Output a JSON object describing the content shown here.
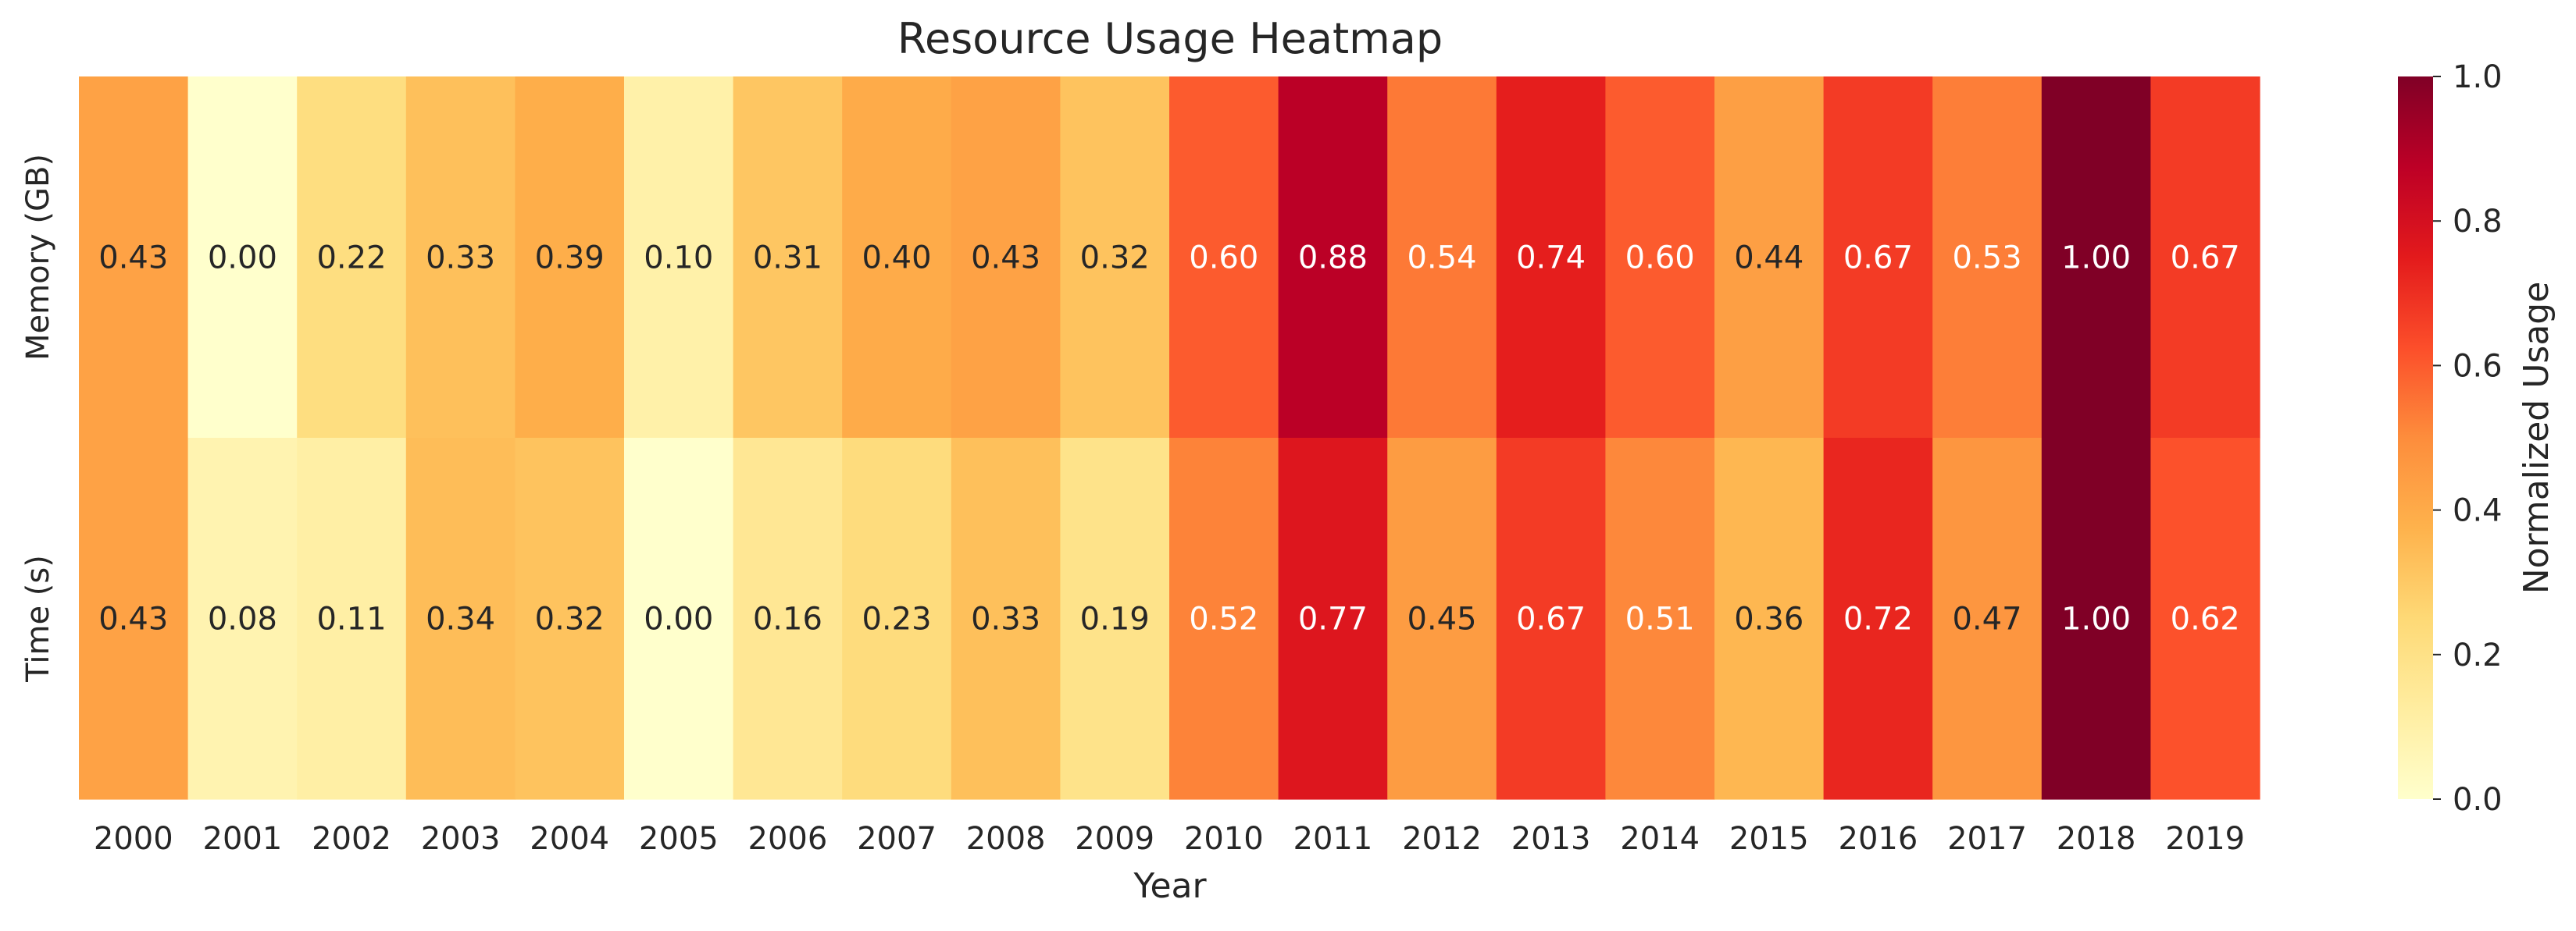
{
  "chart_data": {
    "type": "heatmap",
    "title": "Resource Usage Heatmap",
    "xlabel": "Year",
    "ylabel": "",
    "x": [
      "2000",
      "2001",
      "2002",
      "2003",
      "2004",
      "2005",
      "2006",
      "2007",
      "2008",
      "2009",
      "2010",
      "2011",
      "2012",
      "2013",
      "2014",
      "2015",
      "2016",
      "2017",
      "2018",
      "2019"
    ],
    "y": [
      "Memory (GB)",
      "Time (s)"
    ],
    "values": [
      [
        0.43,
        0.0,
        0.22,
        0.33,
        0.39,
        0.1,
        0.31,
        0.4,
        0.43,
        0.32,
        0.6,
        0.88,
        0.54,
        0.74,
        0.6,
        0.44,
        0.67,
        0.53,
        1.0,
        0.67
      ],
      [
        0.43,
        0.08,
        0.11,
        0.34,
        0.32,
        0.0,
        0.16,
        0.23,
        0.33,
        0.19,
        0.52,
        0.77,
        0.45,
        0.67,
        0.51,
        0.36,
        0.72,
        0.47,
        1.0,
        0.62
      ]
    ],
    "colorbar": {
      "label": "Normalized Usage",
      "ticks": [
        "0.0",
        "0.2",
        "0.4",
        "0.6",
        "0.8",
        "1.0"
      ],
      "range": [
        0,
        1
      ]
    },
    "colormap": "YlOrRd",
    "annotations": true,
    "grid": false
  }
}
